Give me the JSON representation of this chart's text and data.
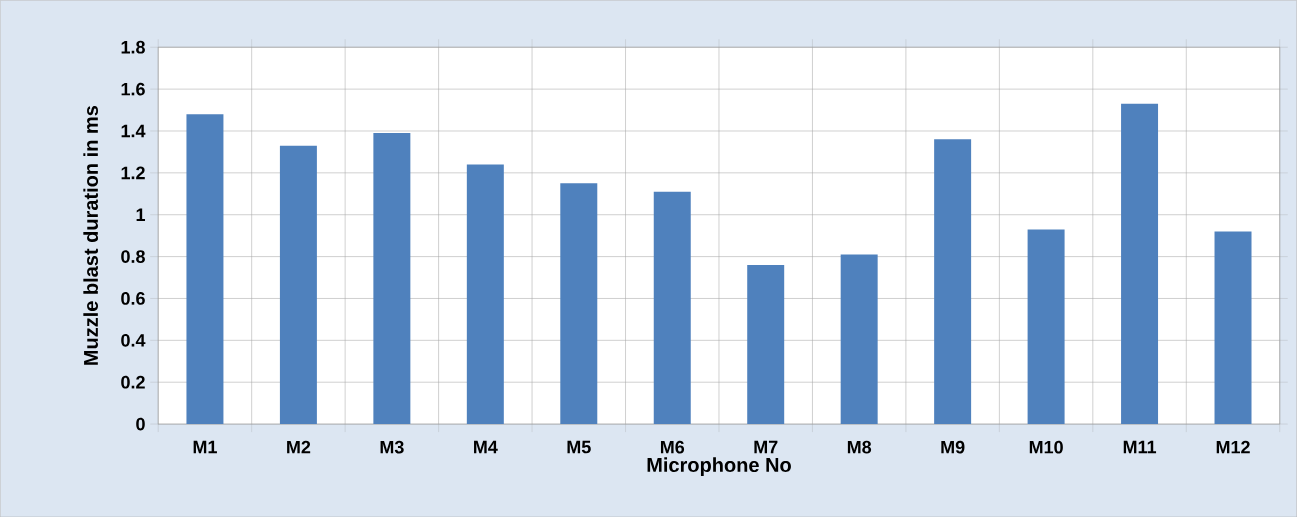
{
  "chart_data": {
    "type": "bar",
    "xlabel": "Microphone No",
    "ylabel": "Muzzle blast duration in ms",
    "categories": [
      "M1",
      "M2",
      "M3",
      "M4",
      "M5",
      "M6",
      "M7",
      "M8",
      "M9",
      "M10",
      "M11",
      "M12"
    ],
    "values": [
      1.48,
      1.33,
      1.39,
      1.24,
      1.15,
      1.11,
      0.76,
      0.81,
      1.36,
      0.93,
      1.53,
      0.92
    ],
    "color": "#4f81bd",
    "ylim": [
      0,
      1.8
    ],
    "yticks": [
      0,
      0.2,
      0.4,
      0.6,
      0.8,
      1,
      1.2,
      1.4,
      1.6,
      1.8
    ],
    "grid": true
  }
}
